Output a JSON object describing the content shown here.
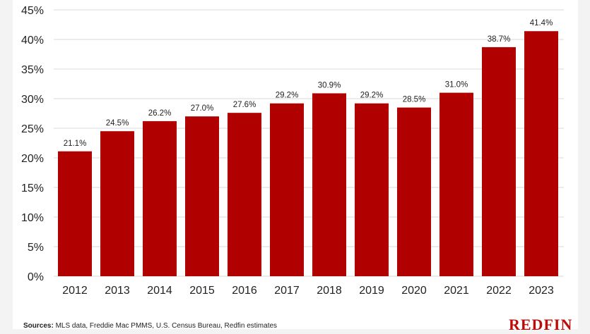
{
  "chart_data": {
    "type": "bar",
    "categories": [
      "2012",
      "2013",
      "2014",
      "2015",
      "2016",
      "2017",
      "2018",
      "2019",
      "2020",
      "2021",
      "2022",
      "2023"
    ],
    "values": [
      21.1,
      24.5,
      26.2,
      27.0,
      27.6,
      29.2,
      30.9,
      29.2,
      28.5,
      31.0,
      38.7,
      41.4
    ],
    "data_labels": [
      "21.1%",
      "24.5%",
      "26.2%",
      "27.0%",
      "27.6%",
      "29.2%",
      "30.9%",
      "29.2%",
      "28.5%",
      "31.0%",
      "38.7%",
      "41.4%"
    ],
    "yticks": [
      0,
      5,
      10,
      15,
      20,
      25,
      30,
      35,
      40,
      45
    ],
    "ytick_labels": [
      "0%",
      "5%",
      "10%",
      "15%",
      "20%",
      "25%",
      "30%",
      "35%",
      "40%",
      "45%"
    ],
    "ylim": [
      0,
      45
    ],
    "grid": true,
    "bar_color": "#b00000"
  },
  "footer": {
    "source_label": "Sources:",
    "source_text": " MLS data, Freddie Mac PMMS, U.S. Census Bureau, Redfin estimates",
    "logo": "REDFIN",
    "logo_color": "#c00a0a"
  }
}
